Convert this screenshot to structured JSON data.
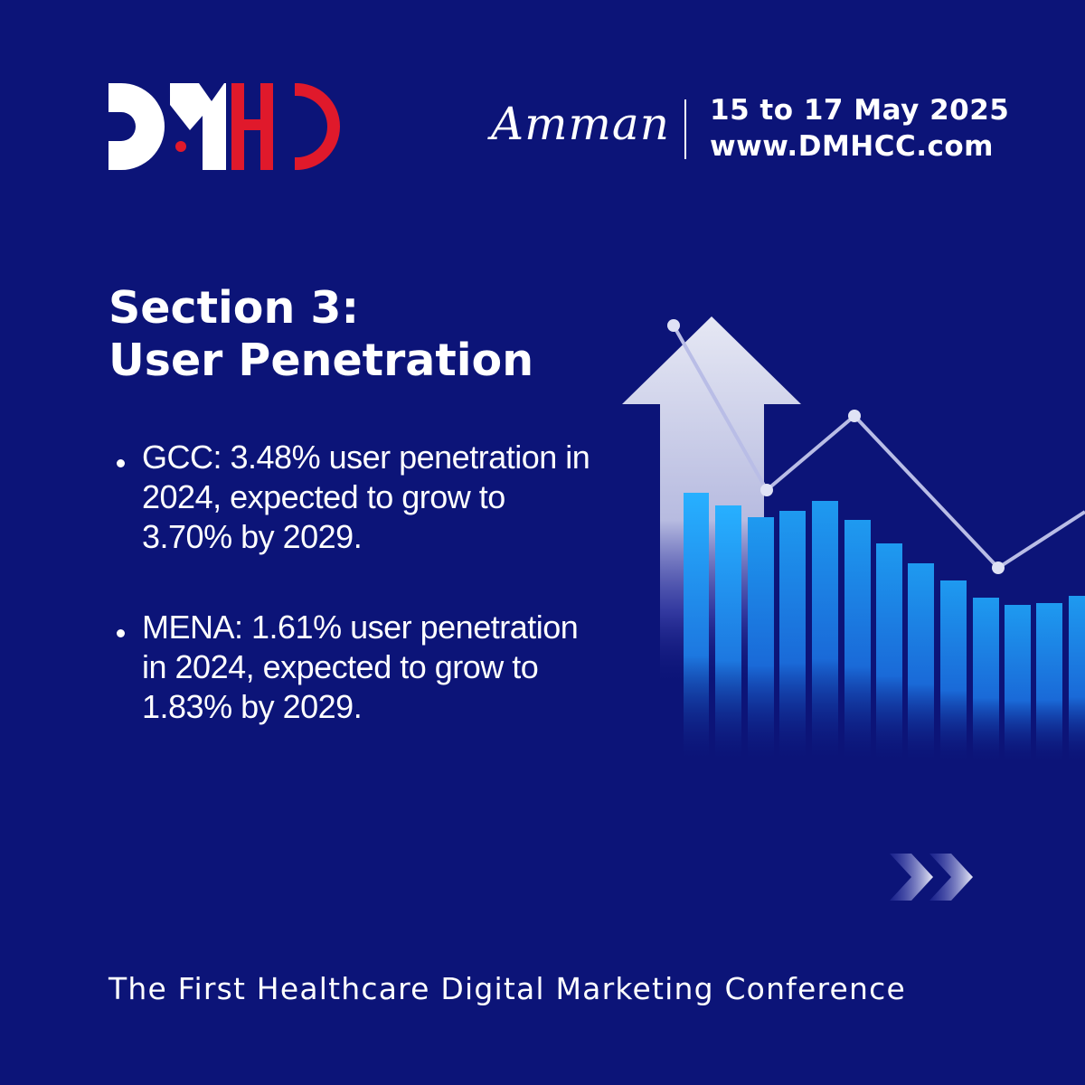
{
  "brand": {
    "logo_text": "DMHC",
    "white": "#ffffff",
    "red": "#e0192b",
    "background": "#0c1478",
    "bar_blue": "#1e8fe8"
  },
  "header": {
    "city": "Amman",
    "date": "15 to 17 May 2025",
    "website": "www.DMHCC.com"
  },
  "section": {
    "title_line1": "Section 3:",
    "title_line2": "User Penetration"
  },
  "bullets": [
    {
      "text": "GCC: 3.48% user penetration in 2024, expected to grow to 3.70% by 2029."
    },
    {
      "text": "MENA: 1.61% user penetration in 2024, expected to grow to 1.83% by 2029."
    }
  ],
  "decoration": {
    "icons": [
      "up-arrow-icon",
      "double-chevron-right-icon"
    ]
  },
  "footer": {
    "tagline": "The First Healthcare Digital Marketing Conference"
  }
}
